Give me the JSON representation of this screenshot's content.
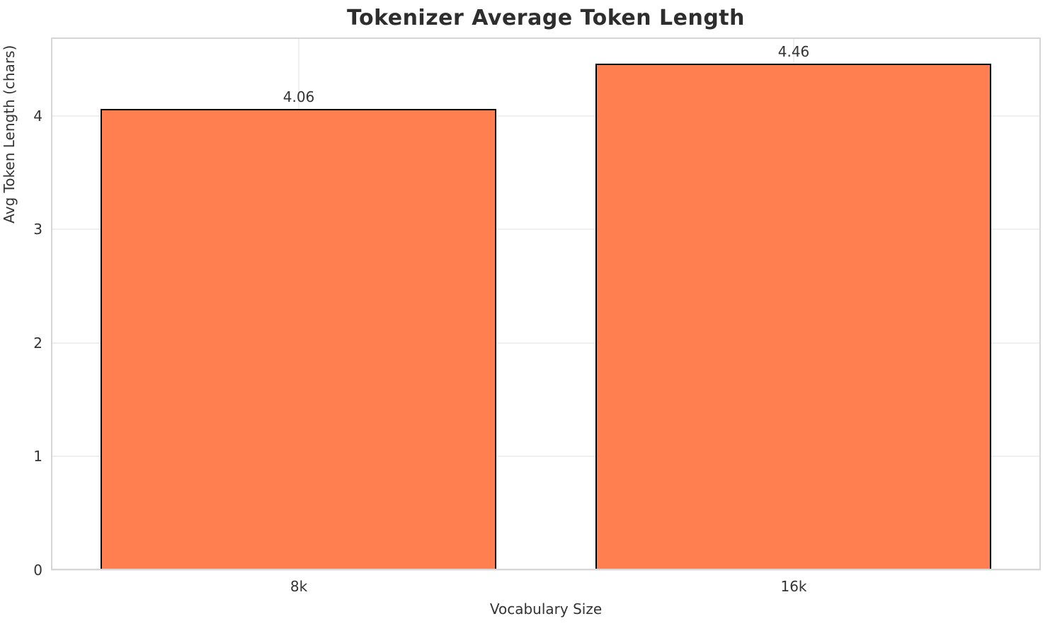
{
  "chart_data": {
    "type": "bar",
    "title": "Tokenizer Average Token Length",
    "xlabel": "Vocabulary Size",
    "ylabel": "Avg Token Length (chars)",
    "categories": [
      "8k",
      "16k"
    ],
    "values": [
      4.06,
      4.46
    ],
    "value_labels": [
      "4.06",
      "4.46"
    ],
    "yticks": [
      0,
      1,
      2,
      3,
      4
    ],
    "ylim": [
      0,
      4.69
    ],
    "grid": true,
    "legend": null,
    "colors": {
      "bar_fill": "#FF7F50",
      "bar_edge": "#000000",
      "title_text": "#2e2e2e",
      "tick_text": "#333333",
      "grid_line": "#efefef",
      "spine": "#d6d6d6",
      "background": "#ffffff"
    }
  }
}
